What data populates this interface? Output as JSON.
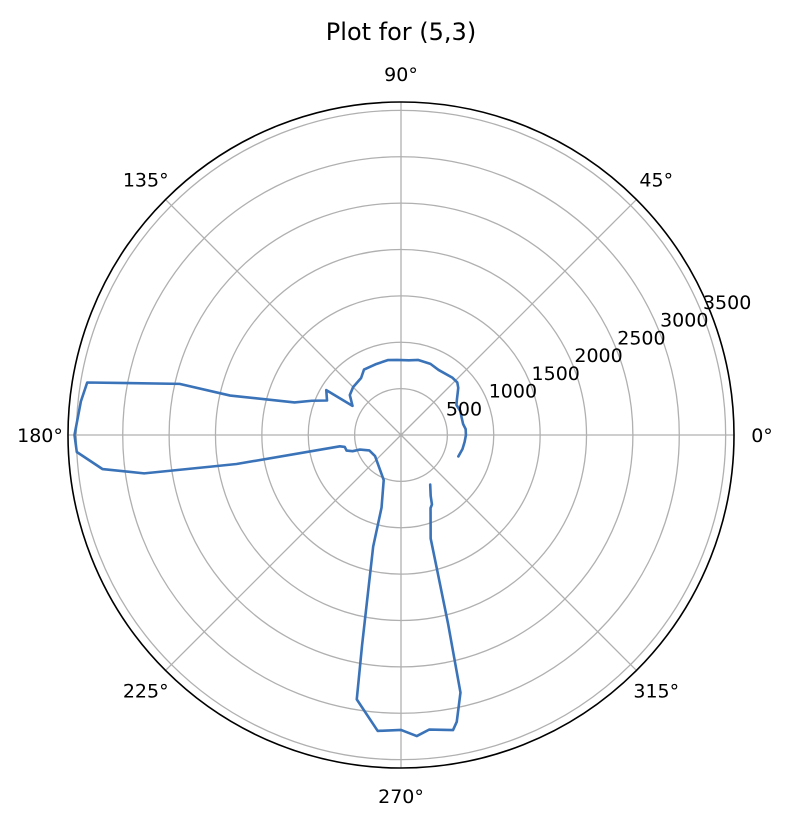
{
  "chart_data": {
    "type": "line",
    "projection": "polar",
    "title": "Plot for (5,3)",
    "grid": true,
    "colors": {
      "series": "#3b73b9",
      "grid": "#b0b0b0",
      "frame": "#000000"
    },
    "angle_unit": "degrees",
    "angle_ticks": [
      0,
      45,
      90,
      135,
      180,
      225,
      270,
      315
    ],
    "angle_tick_labels": [
      "0°",
      "45°",
      "90°",
      "135°",
      "180°",
      "225°",
      "270°",
      "315°"
    ],
    "radial_ticks": [
      500,
      1000,
      1500,
      2000,
      2500,
      3000,
      3500
    ],
    "radial_tick_labels": [
      "500",
      "1000",
      "1500",
      "2000",
      "2500",
      "3000",
      "3500"
    ],
    "rlim": [
      0,
      3590
    ],
    "series": [
      {
        "points": [
          [
            -20.5,
            660
          ],
          [
            -12.8,
            680
          ],
          [
            -6.2,
            690
          ],
          [
            0,
            700
          ],
          [
            5.2,
            700
          ],
          [
            10.0,
            680
          ],
          [
            16.0,
            680
          ],
          [
            22.0,
            690
          ],
          [
            28.5,
            680
          ],
          [
            33.0,
            720
          ],
          [
            36.5,
            760
          ],
          [
            39.5,
            800
          ],
          [
            43.0,
            830
          ],
          [
            48.0,
            830
          ],
          [
            60.0,
            810
          ],
          [
            67.5,
            830
          ],
          [
            77.0,
            830
          ],
          [
            84.0,
            810
          ],
          [
            93.0,
            810
          ],
          [
            100.0,
            820
          ],
          [
            110.0,
            810
          ],
          [
            119.5,
            810
          ],
          [
            125.0,
            750
          ],
          [
            135.0,
            730
          ],
          [
            142.0,
            700
          ],
          [
            149.0,
            610
          ],
          [
            149.0,
            940
          ],
          [
            155.0,
            880
          ],
          [
            159.0,
            1030
          ],
          [
            163.0,
            1200
          ],
          [
            167.0,
            1890
          ],
          [
            167.0,
            2450
          ],
          [
            170.5,
            3430
          ],
          [
            174.0,
            3470
          ],
          [
            180.0,
            3520
          ],
          [
            183.0,
            3500
          ],
          [
            186.5,
            3240
          ],
          [
            188.5,
            2800
          ],
          [
            189.5,
            2050
          ],
          [
            190.0,
            1800
          ],
          [
            190.5,
            670
          ],
          [
            192.0,
            620
          ],
          [
            196.0,
            610
          ],
          [
            198.5,
            550
          ],
          [
            199.5,
            470
          ],
          [
            206.0,
            380
          ],
          [
            219.0,
            360
          ],
          [
            249.0,
            520
          ],
          [
            255.0,
            810
          ],
          [
            256.0,
            1240
          ],
          [
            259.5,
            2300
          ],
          [
            260.5,
            2890
          ],
          [
            265.5,
            3200
          ],
          [
            270.0,
            3180
          ],
          [
            273.0,
            3250
          ],
          [
            275.5,
            3190
          ],
          [
            280.0,
            3230
          ],
          [
            281.0,
            3150
          ],
          [
            283.0,
            2850
          ],
          [
            284.0,
            2100
          ],
          [
            285.0,
            1500
          ],
          [
            286.0,
            1160
          ],
          [
            289.0,
            980
          ],
          [
            292.0,
            850
          ],
          [
            294.0,
            820
          ],
          [
            296.0,
            730
          ],
          [
            300.5,
            620
          ]
        ]
      }
    ]
  }
}
